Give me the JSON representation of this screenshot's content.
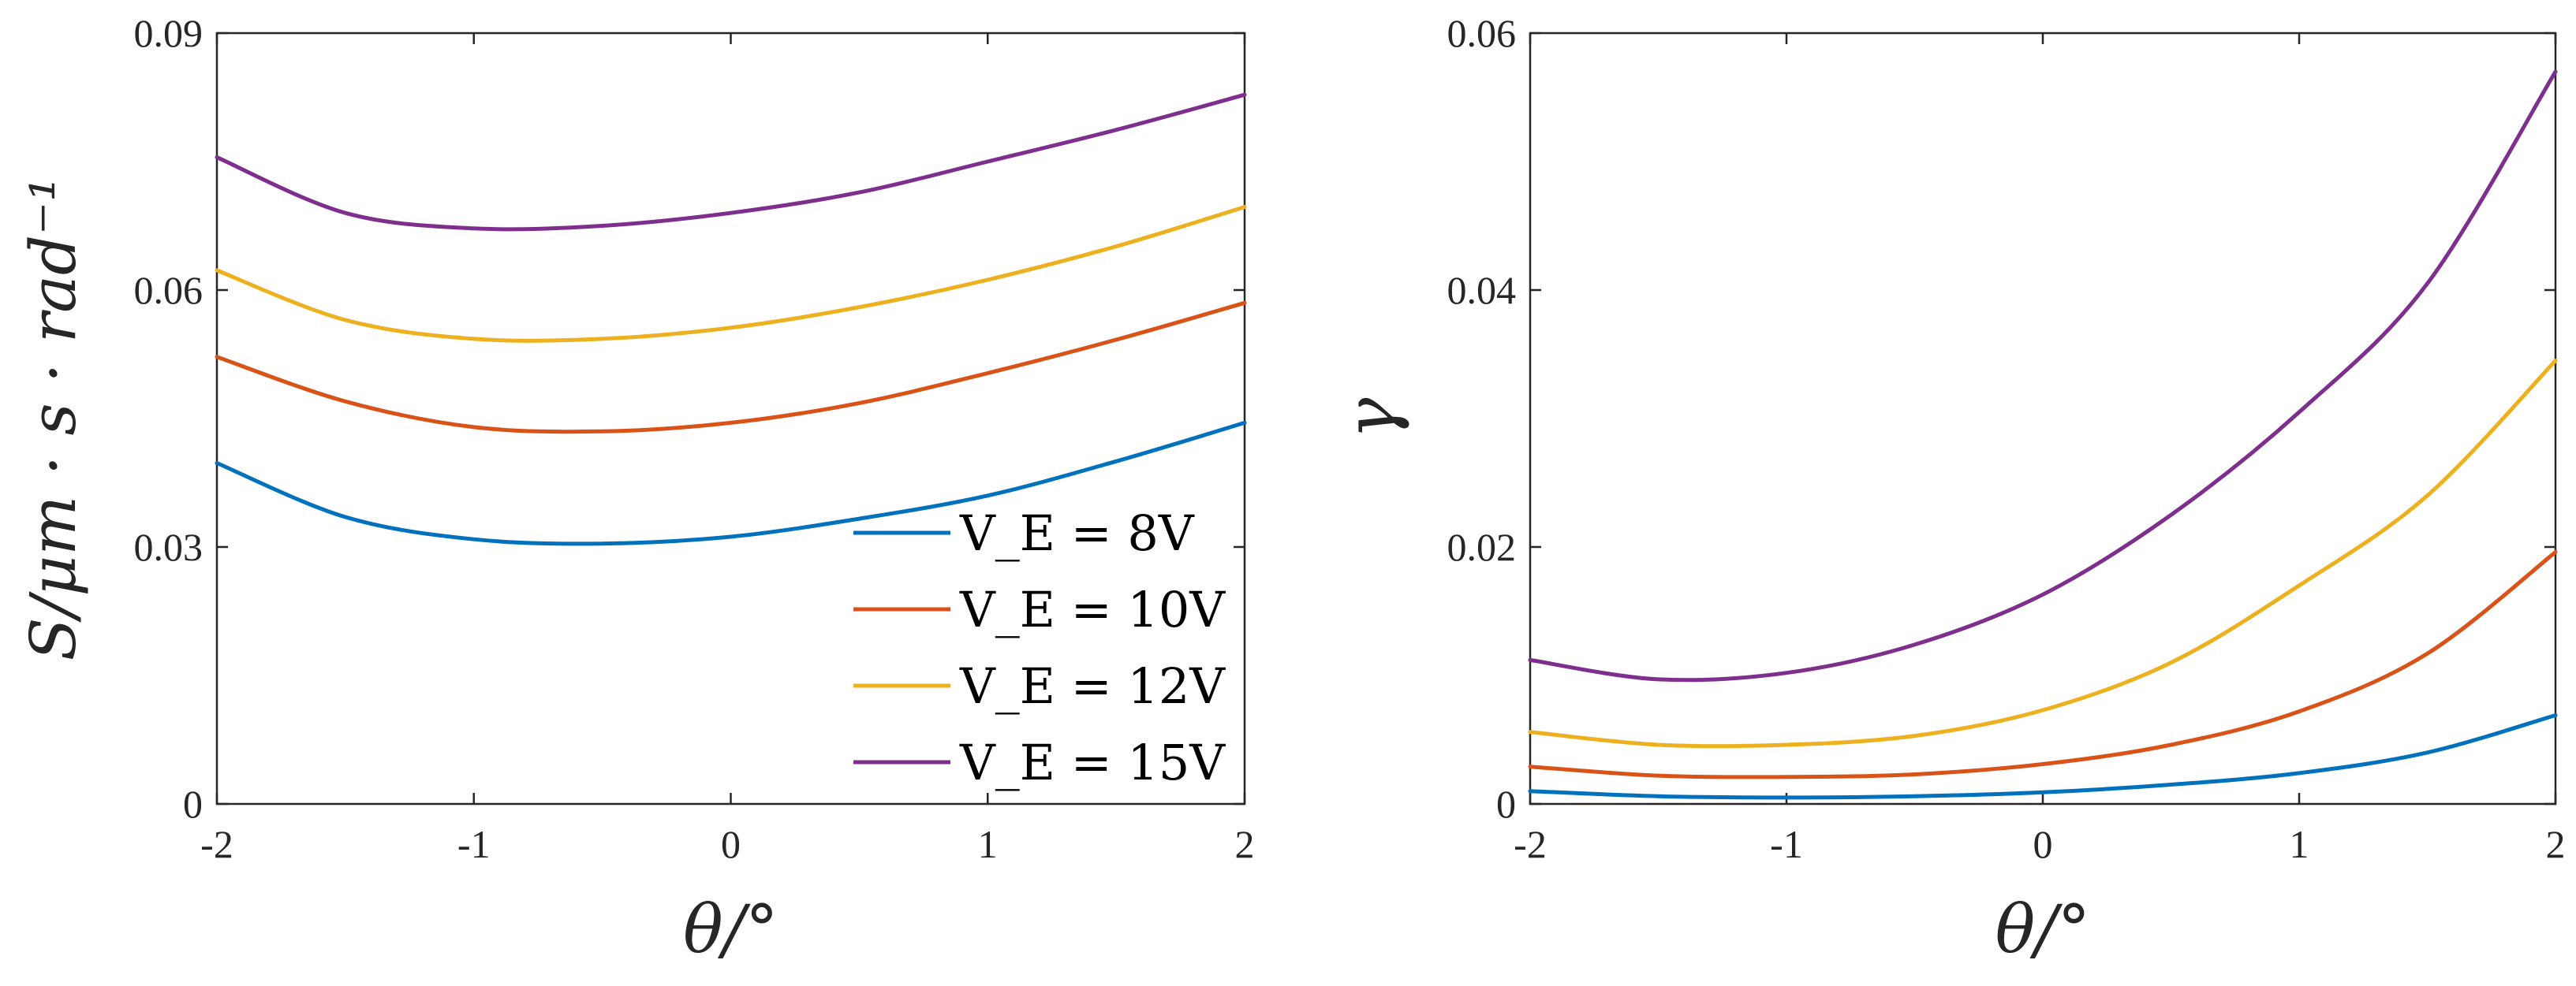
{
  "chart_data": [
    {
      "type": "line",
      "ylabel": "S/μm · s · rad⁻¹",
      "xlabel": "θ/°",
      "xlim": [
        -2,
        2
      ],
      "ylim": [
        0,
        0.09
      ],
      "xticks": [
        "-2",
        "-1",
        "0",
        "1",
        "2"
      ],
      "yticks": [
        "0",
        "0.03",
        "0.06",
        "0.09"
      ],
      "legend_position": "lower-right",
      "x": [
        -2,
        -1.5,
        -1,
        -0.5,
        0,
        0.5,
        1,
        1.5,
        2
      ],
      "series": [
        {
          "name": "V_E = 8V",
          "color": "#0072BD",
          "values": [
            0.0398,
            0.0335,
            0.0309,
            0.0304,
            0.0312,
            0.0333,
            0.036,
            0.04,
            0.0445
          ]
        },
        {
          "name": "V_E = 10V",
          "color": "#D95319",
          "values": [
            0.0522,
            0.047,
            0.044,
            0.0435,
            0.0445,
            0.0468,
            0.0503,
            0.0542,
            0.0585
          ]
        },
        {
          "name": "V_E = 12V",
          "color": "#EDB120",
          "values": [
            0.0623,
            0.0565,
            0.0543,
            0.0543,
            0.0556,
            0.058,
            0.0612,
            0.0651,
            0.0697
          ]
        },
        {
          "name": "V_E = 15V",
          "color": "#7E2F8E",
          "values": [
            0.0755,
            0.069,
            0.0672,
            0.0675,
            0.069,
            0.0714,
            0.075,
            0.0787,
            0.0828
          ]
        }
      ]
    },
    {
      "type": "line",
      "ylabel": "γ",
      "xlabel": "θ/°",
      "xlim": [
        -2,
        2
      ],
      "ylim": [
        0,
        0.06
      ],
      "xticks": [
        "-2",
        "-1",
        "0",
        "1",
        "2"
      ],
      "yticks": [
        "0",
        "0.02",
        "0.04",
        "0.06"
      ],
      "x": [
        -2,
        -1.5,
        -1,
        -0.5,
        0,
        0.5,
        1,
        1.5,
        2
      ],
      "series": [
        {
          "name": "V_E = 8V",
          "color": "#0072BD",
          "values": [
            0.001,
            0.0006,
            0.0005,
            0.0006,
            0.0009,
            0.0015,
            0.0024,
            0.004,
            0.0069
          ]
        },
        {
          "name": "V_E = 10V",
          "color": "#D95319",
          "values": [
            0.0029,
            0.0022,
            0.0021,
            0.0023,
            0.0031,
            0.0046,
            0.0072,
            0.0117,
            0.0196
          ]
        },
        {
          "name": "V_E = 12V",
          "color": "#EDB120",
          "values": [
            0.0056,
            0.0046,
            0.0046,
            0.0053,
            0.0073,
            0.011,
            0.017,
            0.024,
            0.0345
          ]
        },
        {
          "name": "V_E = 15V",
          "color": "#7E2F8E",
          "values": [
            0.0112,
            0.0097,
            0.0102,
            0.0124,
            0.0163,
            0.0225,
            0.0305,
            0.0405,
            0.057
          ]
        }
      ]
    }
  ]
}
